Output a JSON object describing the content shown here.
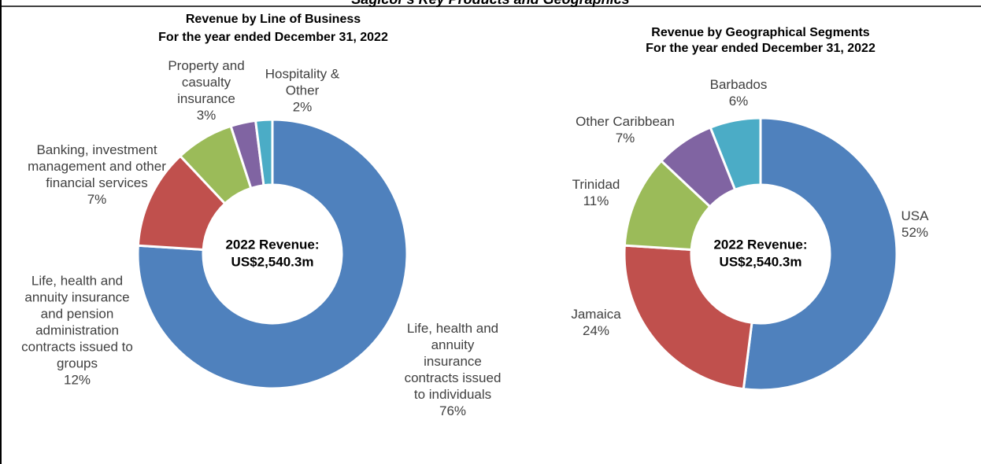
{
  "header": {
    "title": "Sagicor's Key Products and Geographics"
  },
  "chart_data": [
    {
      "type": "donut",
      "title": "Revenue by Line of Business",
      "subtitle": "For the year ended December 31, 2022",
      "center_text": [
        "2022 Revenue:",
        "US$2,540.3m"
      ],
      "categories": [
        "Life, health and annuity insurance contracts issued to individuals",
        "Life, health and annuity insurance and pension administration contracts issued to groups",
        "Banking, investment management and other financial services",
        "Property and casualty insurance",
        "Hospitality & Other"
      ],
      "values": [
        76,
        12,
        7,
        3,
        2
      ],
      "value_labels": [
        "76%",
        "12%",
        "7%",
        "3%",
        "2%"
      ],
      "colors": [
        "#4f81bd",
        "#c0504d",
        "#9bbb59",
        "#8064a2",
        "#4bacc6"
      ]
    },
    {
      "type": "donut",
      "title": "Revenue by Geographical Segments",
      "subtitle": "For the year ended December 31, 2022",
      "center_text": [
        "2022 Revenue:",
        "US$2,540.3m"
      ],
      "categories": [
        "USA",
        "Jamaica",
        "Trinidad",
        "Other Caribbean",
        "Barbados"
      ],
      "values": [
        52,
        24,
        11,
        7,
        6
      ],
      "value_labels": [
        "52%",
        "24%",
        "11%",
        "7%",
        "6%"
      ],
      "colors": [
        "#4f81bd",
        "#c0504d",
        "#9bbb59",
        "#8064a2",
        "#4bacc6"
      ]
    }
  ]
}
